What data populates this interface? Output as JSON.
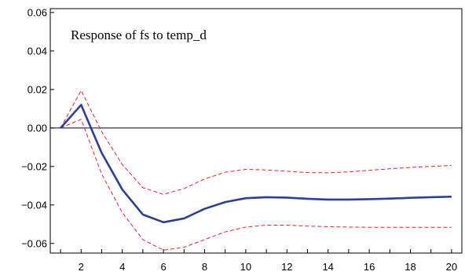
{
  "chart_data": {
    "type": "line",
    "title": "Response of fs to temp_d",
    "xlabel": "",
    "ylabel": "",
    "xlim": [
      0.5,
      20.5
    ],
    "ylim": [
      -0.065,
      0.062
    ],
    "x_ticks": [
      2,
      4,
      6,
      8,
      10,
      12,
      14,
      16,
      18,
      20
    ],
    "y_ticks": [
      0.06,
      0.04,
      0.02,
      0.0,
      -0.02,
      -0.04,
      -0.06
    ],
    "y_tick_labels": [
      "0.06",
      "0.04",
      "0.02",
      "0.00",
      "−0.02",
      "−0.04",
      "−0.06"
    ],
    "grid": false,
    "legend": "none",
    "zero_line": true,
    "x": [
      1,
      2,
      3,
      4,
      5,
      6,
      7,
      8,
      9,
      10,
      11,
      12,
      13,
      14,
      15,
      16,
      17,
      18,
      19,
      20
    ],
    "series": [
      {
        "role": "response",
        "color": "#2e3f9a",
        "dashed": false,
        "values": [
          0.0,
          0.012,
          -0.013,
          -0.032,
          -0.045,
          -0.049,
          -0.047,
          -0.042,
          -0.0385,
          -0.0365,
          -0.036,
          -0.0362,
          -0.0368,
          -0.0372,
          -0.0372,
          -0.037,
          -0.0367,
          -0.0363,
          -0.036,
          -0.0357
        ]
      },
      {
        "role": "upper-band",
        "color": "#e8202a",
        "dashed": true,
        "values": [
          0.0,
          0.0195,
          -0.002,
          -0.019,
          -0.031,
          -0.0345,
          -0.0315,
          -0.0265,
          -0.023,
          -0.0215,
          -0.0218,
          -0.0225,
          -0.0232,
          -0.0233,
          -0.0228,
          -0.022,
          -0.0212,
          -0.0205,
          -0.02,
          -0.0195
        ]
      },
      {
        "role": "lower-band",
        "color": "#e8202a",
        "dashed": true,
        "values": [
          0.0,
          0.0045,
          -0.024,
          -0.044,
          -0.058,
          -0.0635,
          -0.062,
          -0.058,
          -0.054,
          -0.0515,
          -0.0505,
          -0.0505,
          -0.051,
          -0.0513,
          -0.0515,
          -0.0516,
          -0.0516,
          -0.0516,
          -0.0516,
          -0.0516
        ]
      }
    ]
  }
}
